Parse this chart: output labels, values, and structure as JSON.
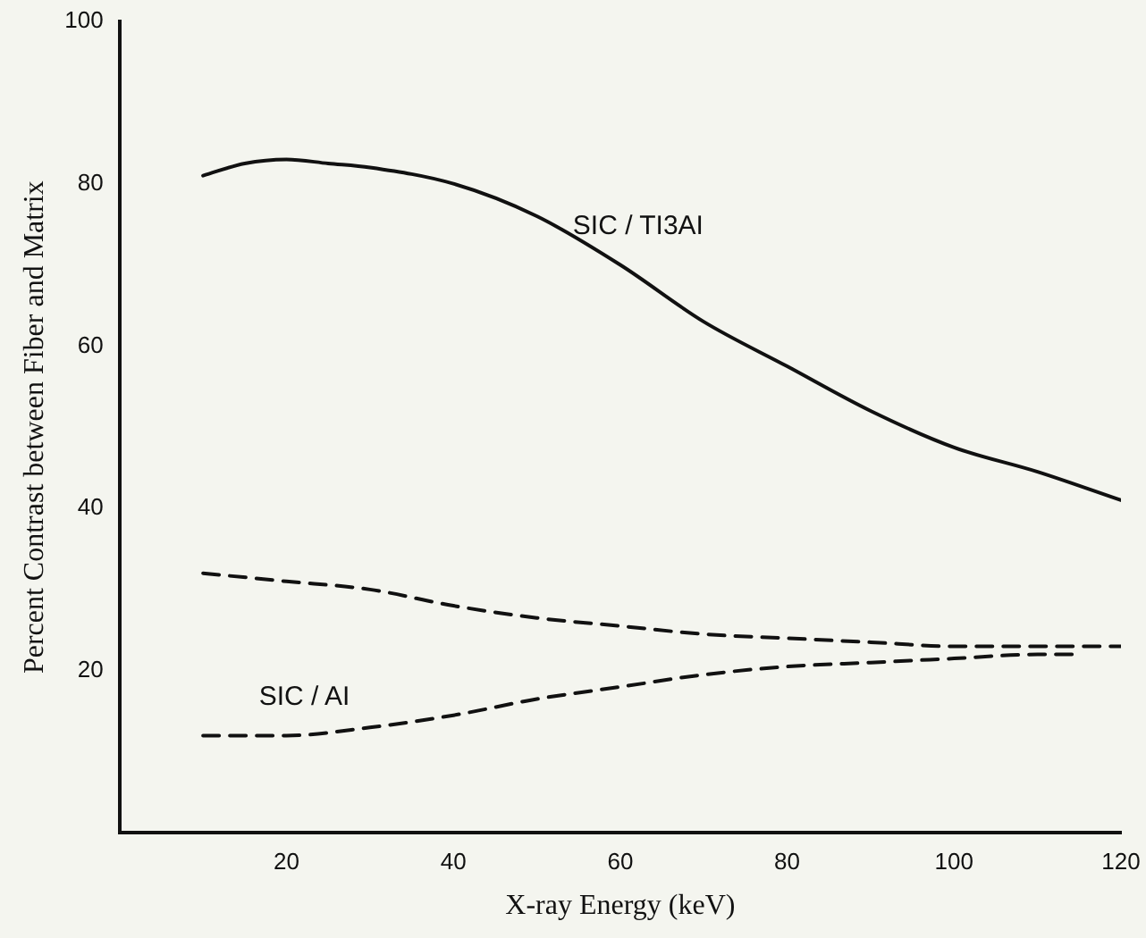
{
  "chart_data": {
    "type": "line",
    "xlabel": "X-ray Energy (keV)",
    "ylabel": "Percent Contrast between Fiber and Matrix",
    "xlim": [
      0,
      120
    ],
    "xticks": [
      20,
      40,
      60,
      80,
      100,
      120
    ],
    "ylim": [
      0,
      100
    ],
    "yticks": [
      20,
      40,
      60,
      80,
      100
    ],
    "grid": false,
    "legend": false,
    "marker": "none",
    "series": [
      {
        "name": "SIC / TI3AI",
        "color": "#111111",
        "line_style": "solid",
        "x": [
          10,
          15,
          20,
          25,
          30,
          40,
          50,
          60,
          70,
          80,
          90,
          100,
          110,
          120
        ],
        "values": [
          81,
          82.5,
          83,
          82.5,
          82,
          80,
          76,
          70,
          63,
          57.5,
          52,
          47.5,
          44.5,
          41
        ]
      },
      {
        "color": "#111111",
        "line_style": "dashed",
        "x": [
          10,
          20,
          30,
          40,
          50,
          60,
          70,
          80,
          90,
          100,
          110,
          120
        ],
        "values": [
          32,
          31,
          30,
          28,
          26.5,
          25.5,
          24.5,
          24,
          23.5,
          23,
          23,
          23
        ]
      },
      {
        "name": "SIC / AI",
        "color": "#111111",
        "line_style": "dashed",
        "x": [
          10,
          20,
          30,
          40,
          50,
          60,
          70,
          80,
          90,
          100,
          110,
          115
        ],
        "values": [
          12,
          12,
          13,
          14.5,
          16.5,
          18,
          19.5,
          20.5,
          21,
          21.5,
          22,
          22
        ]
      }
    ]
  }
}
